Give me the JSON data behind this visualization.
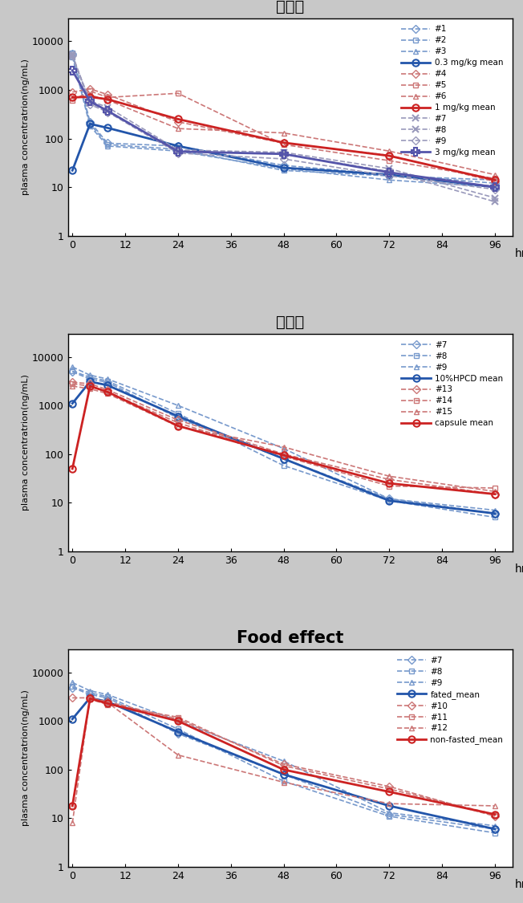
{
  "time_points": [
    0,
    4,
    8,
    24,
    48,
    72,
    96
  ],
  "panel1": {
    "title": "용량별",
    "title_fontsize": 14,
    "title_fontweight": "bold",
    "series": [
      {
        "label": "#1",
        "color": "#7799CC",
        "lw": 1.2,
        "ls": "--",
        "marker": "D",
        "ms": 5,
        "mew": 1.0,
        "values": [
          5500,
          220,
          80,
          70,
          28,
          18,
          12
        ]
      },
      {
        "label": "#2",
        "color": "#7799CC",
        "lw": 1.2,
        "ls": "--",
        "marker": "s",
        "ms": 5,
        "mew": 1.0,
        "values": [
          5800,
          200,
          75,
          60,
          22,
          17,
          14
        ]
      },
      {
        "label": "#3",
        "color": "#7799CC",
        "lw": 1.2,
        "ls": "--",
        "marker": "^",
        "ms": 5,
        "mew": 1.0,
        "values": [
          4800,
          180,
          70,
          55,
          24,
          14,
          10
        ]
      },
      {
        "label": "0.3 mg/kg mean",
        "color": "#2255AA",
        "lw": 2.0,
        "ls": "-",
        "marker": "o",
        "ms": 6,
        "mew": 1.5,
        "values": [
          22,
          200,
          165,
          70,
          25,
          18,
          10
        ]
      },
      {
        "label": "#4",
        "color": "#CC7777",
        "lw": 1.2,
        "ls": "--",
        "marker": "D",
        "ms": 5,
        "mew": 1.0,
        "values": [
          900,
          1050,
          800,
          220,
          80,
          45,
          13
        ]
      },
      {
        "label": "#5",
        "color": "#CC7777",
        "lw": 1.2,
        "ls": "--",
        "marker": "s",
        "ms": 5,
        "mew": 1.0,
        "values": [
          600,
          950,
          700,
          850,
          75,
          35,
          15
        ]
      },
      {
        "label": "#6",
        "color": "#CC7777",
        "lw": 1.2,
        "ls": "--",
        "marker": "^",
        "ms": 5,
        "mew": 1.0,
        "values": [
          680,
          780,
          620,
          160,
          130,
          55,
          18
        ]
      },
      {
        "label": "1 mg/kg mean",
        "color": "#CC2222",
        "lw": 2.0,
        "ls": "-",
        "marker": "o",
        "ms": 6,
        "mew": 1.5,
        "values": [
          700,
          720,
          640,
          250,
          82,
          44,
          14
        ]
      },
      {
        "label": "#7",
        "color": "#9999BB",
        "lw": 1.2,
        "ls": "--",
        "marker": "x",
        "ms": 6,
        "mew": 1.5,
        "values": [
          4900,
          590,
          440,
          58,
          52,
          24,
          6
        ]
      },
      {
        "label": "#8",
        "color": "#9999BB",
        "lw": 1.2,
        "ls": "--",
        "marker": "x",
        "ms": 6,
        "mew": 1.5,
        "values": [
          5300,
          540,
          370,
          54,
          48,
          21,
          5
        ]
      },
      {
        "label": "#9",
        "color": "#9999BB",
        "lw": 1.2,
        "ls": "--",
        "marker": "D",
        "ms": 5,
        "mew": 1.0,
        "values": [
          5100,
          500,
          350,
          50,
          38,
          17,
          9
        ]
      },
      {
        "label": "3 mg/kg mean",
        "color": "#5555AA",
        "lw": 2.0,
        "ls": "-",
        "marker": "P",
        "ms": 7,
        "mew": 1.5,
        "values": [
          2500,
          580,
          370,
          54,
          48,
          20,
          10
        ]
      }
    ]
  },
  "panel2": {
    "title": "제형별",
    "title_fontsize": 14,
    "title_fontweight": "bold",
    "series": [
      {
        "label": "#7",
        "color": "#7799CC",
        "lw": 1.2,
        "ls": "--",
        "marker": "D",
        "ms": 5,
        "mew": 1.0,
        "values": [
          4900,
          3500,
          3000,
          550,
          80,
          12,
          6
        ]
      },
      {
        "label": "#8",
        "color": "#7799CC",
        "lw": 1.2,
        "ls": "--",
        "marker": "s",
        "ms": 5,
        "mew": 1.0,
        "values": [
          5100,
          3800,
          3200,
          680,
          58,
          11,
          5
        ]
      },
      {
        "label": "#9",
        "color": "#7799CC",
        "lw": 1.2,
        "ls": "--",
        "marker": "^",
        "ms": 5,
        "mew": 1.0,
        "values": [
          6200,
          4200,
          3500,
          1000,
          130,
          12,
          7
        ]
      },
      {
        "label": "10%HPCD mean",
        "color": "#2255AA",
        "lw": 2.0,
        "ls": "-",
        "marker": "o",
        "ms": 6,
        "mew": 1.5,
        "values": [
          1100,
          3100,
          2600,
          600,
          80,
          11,
          6
        ]
      },
      {
        "label": "#13",
        "color": "#CC7777",
        "lw": 1.2,
        "ls": "--",
        "marker": "D",
        "ms": 5,
        "mew": 1.0,
        "values": [
          3000,
          2800,
          2100,
          500,
          100,
          30,
          15
        ]
      },
      {
        "label": "#14",
        "color": "#CC7777",
        "lw": 1.2,
        "ls": "--",
        "marker": "s",
        "ms": 5,
        "mew": 1.0,
        "values": [
          2800,
          2500,
          1900,
          440,
          90,
          22,
          20
        ]
      },
      {
        "label": "#15",
        "color": "#CC7777",
        "lw": 1.2,
        "ls": "--",
        "marker": "^",
        "ms": 5,
        "mew": 1.0,
        "values": [
          2500,
          2200,
          1750,
          370,
          140,
          35,
          17
        ]
      },
      {
        "label": "capsule mean",
        "color": "#CC2222",
        "lw": 2.0,
        "ls": "-",
        "marker": "o",
        "ms": 6,
        "mew": 1.5,
        "values": [
          50,
          2500,
          1900,
          380,
          95,
          25,
          15
        ]
      }
    ]
  },
  "panel3": {
    "title": "Food effect",
    "title_fontsize": 15,
    "title_fontweight": "bold",
    "series": [
      {
        "label": "#7",
        "color": "#7799CC",
        "lw": 1.2,
        "ls": "--",
        "marker": "D",
        "ms": 5,
        "mew": 1.0,
        "values": [
          4900,
          3500,
          3000,
          550,
          80,
          12,
          6
        ]
      },
      {
        "label": "#8",
        "color": "#7799CC",
        "lw": 1.2,
        "ls": "--",
        "marker": "s",
        "ms": 5,
        "mew": 1.0,
        "values": [
          5100,
          3800,
          3200,
          680,
          58,
          11,
          5
        ]
      },
      {
        "label": "#9",
        "color": "#7799CC",
        "lw": 1.2,
        "ls": "--",
        "marker": "^",
        "ms": 5,
        "mew": 1.0,
        "values": [
          6200,
          4200,
          3500,
          1000,
          150,
          13,
          7
        ]
      },
      {
        "label": "fated_mean",
        "color": "#2255AA",
        "lw": 2.0,
        "ls": "-",
        "marker": "o",
        "ms": 6,
        "mew": 1.5,
        "values": [
          1100,
          3000,
          2500,
          600,
          80,
          18,
          6
        ]
      },
      {
        "label": "#10",
        "color": "#CC7777",
        "lw": 1.2,
        "ls": "--",
        "marker": "D",
        "ms": 5,
        "mew": 1.0,
        "values": [
          3000,
          3000,
          2500,
          1100,
          130,
          45,
          11
        ]
      },
      {
        "label": "#11",
        "color": "#CC7777",
        "lw": 1.2,
        "ls": "--",
        "marker": "s",
        "ms": 5,
        "mew": 1.0,
        "values": [
          18,
          2800,
          2200,
          1200,
          120,
          40,
          12
        ]
      },
      {
        "label": "#12",
        "color": "#CC7777",
        "lw": 1.2,
        "ls": "--",
        "marker": "^",
        "ms": 5,
        "mew": 1.0,
        "values": [
          8,
          3000,
          2400,
          200,
          55,
          20,
          18
        ]
      },
      {
        "label": "non-fasted_mean",
        "color": "#CC2222",
        "lw": 2.0,
        "ls": "-",
        "marker": "o",
        "ms": 6,
        "mew": 1.5,
        "values": [
          18,
          2900,
          2300,
          1000,
          100,
          35,
          12
        ]
      }
    ]
  },
  "xlabel": "hr",
  "ylabel": "plasma concentratrion(ng/mL)",
  "xticks": [
    0,
    12,
    24,
    36,
    48,
    60,
    72,
    84,
    96
  ],
  "xlim": [
    -1,
    100
  ],
  "ylim": [
    1,
    30000
  ],
  "yticks": [
    1,
    10,
    100,
    1000,
    10000
  ],
  "ytick_labels": [
    "1",
    "10",
    "100",
    "1000",
    "10000"
  ],
  "fig_facecolor": "#c8c8c8",
  "ax_facecolor": "#ffffff",
  "legend_fontsize": 7.5,
  "tick_fontsize": 9,
  "ylabel_fontsize": 8
}
